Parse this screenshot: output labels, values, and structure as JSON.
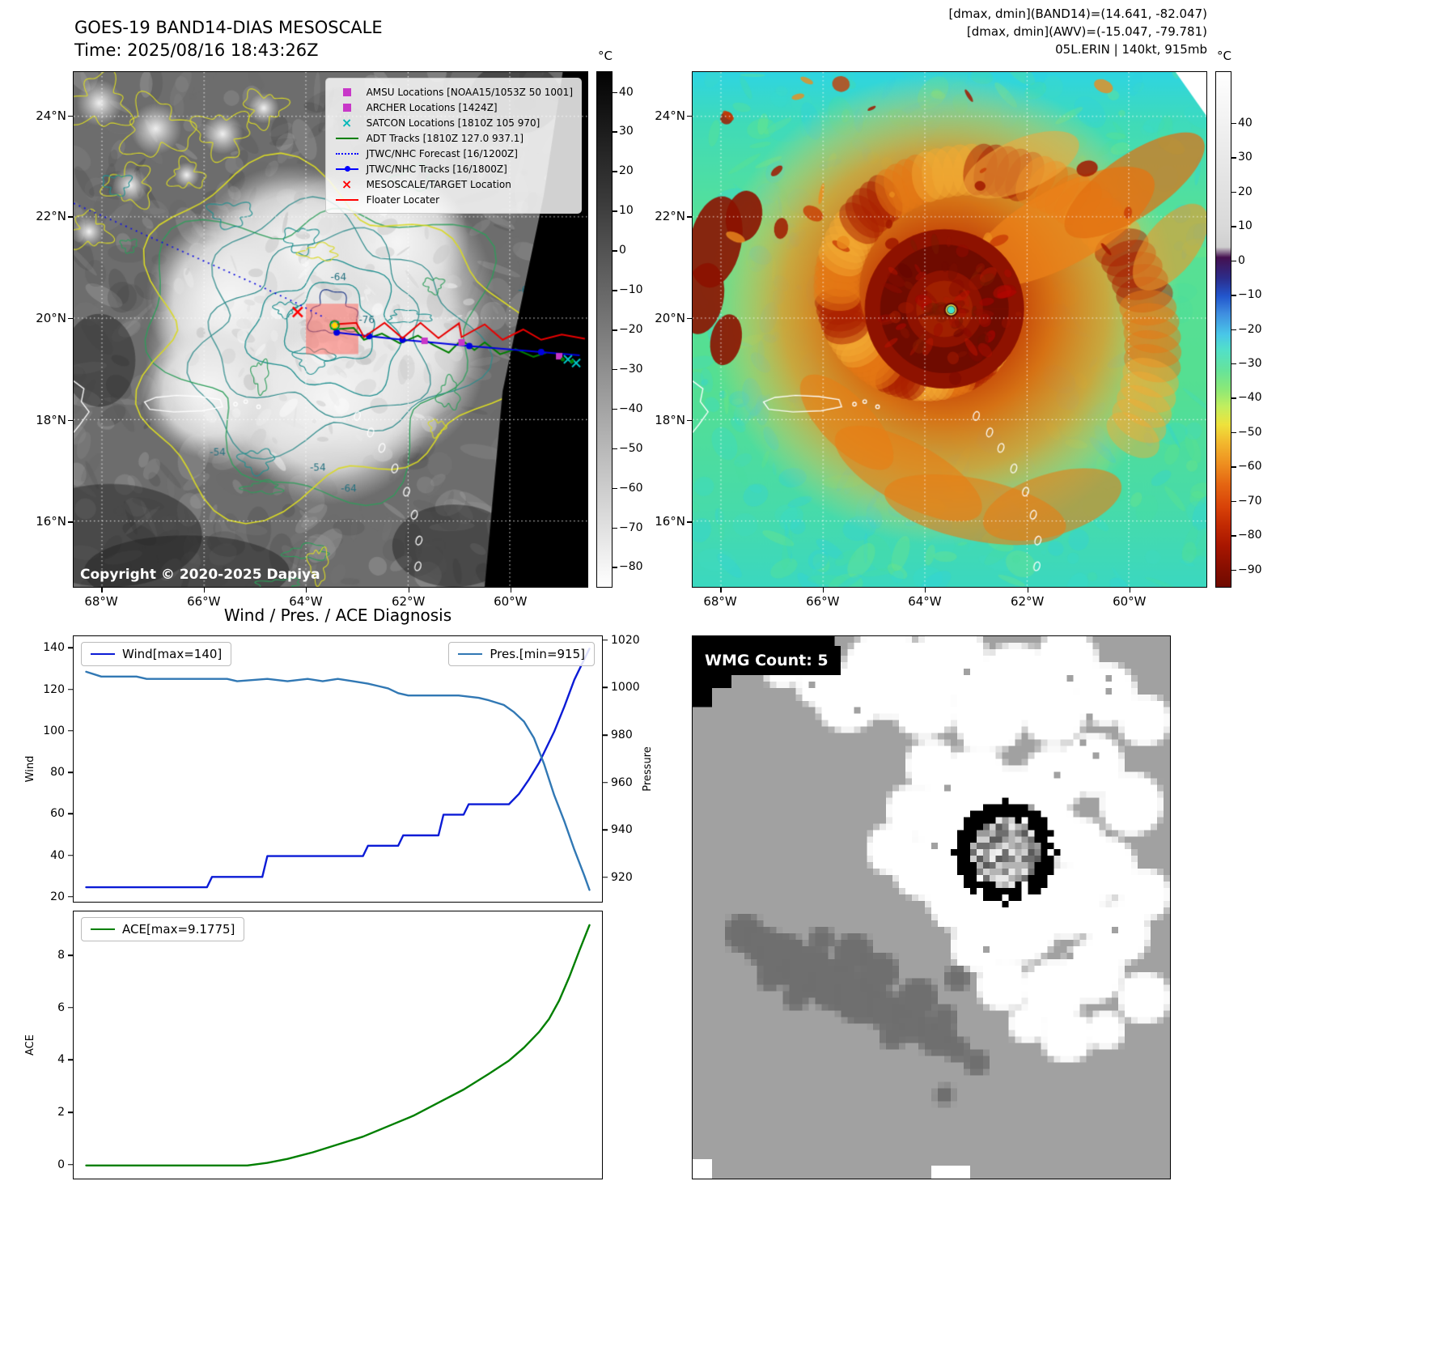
{
  "band14_panel": {
    "title_line1": "GOES-19 BAND14-DIAS MESOSCALE",
    "title_line2": "Time: 2025/08/16 18:43:26Z",
    "copyright": "Copyright © 2020-2025 Dapiya",
    "colorbar_unit": "°C",
    "colorbar_ticks": [
      "40",
      "30",
      "20",
      "10",
      "0",
      "−10",
      "−20",
      "−30",
      "−40",
      "−50",
      "−60",
      "−70",
      "−80"
    ],
    "lat_ticks": [
      "24°N",
      "22°N",
      "20°N",
      "18°N",
      "16°N"
    ],
    "lon_ticks": [
      "68°W",
      "66°W",
      "64°W",
      "62°W",
      "60°W"
    ],
    "legend_items": [
      {
        "label": "AMSU Locations [NOAA15/1053Z 50 1001]",
        "marker": "square",
        "color": "#c837c8"
      },
      {
        "label": "ARCHER Locations [1424Z]",
        "marker": "square",
        "color": "#c837c8"
      },
      {
        "label": "SATCON Locations [1810Z 105 970]",
        "marker": "x",
        "color": "#00b8b8"
      },
      {
        "label": "ADT Tracks [1810Z 127.0 937.1]",
        "marker": "line",
        "color": "#007f00"
      },
      {
        "label": "JTWC/NHC Forecast [16/1200Z]",
        "marker": "dotted",
        "color": "#0000ff"
      },
      {
        "label": "JTWC/NHC Tracks [16/1800Z]",
        "marker": "line-dot",
        "color": "#0000ff"
      },
      {
        "label": "MESOSCALE/TARGET Location",
        "marker": "x",
        "color": "#ff0000"
      },
      {
        "label": "Floater Locater",
        "marker": "line",
        "color": "#ff0000"
      }
    ],
    "contour_labels": [
      "-64",
      "-76",
      "-64",
      "-54",
      "-54",
      "-64"
    ]
  },
  "awv_panel": {
    "header_line1": "[dmax, dmin](BAND14)=(14.641, -82.047)",
    "header_line2": "[dmax, dmin](AWV)=(-15.047, -79.781)",
    "header_line3": "05L.ERIN | 140kt, 915mb",
    "colorbar_unit": "°C",
    "colorbar_ticks": [
      "40",
      "30",
      "20",
      "10",
      "0",
      "−10",
      "−20",
      "−30",
      "−40",
      "−50",
      "−60",
      "−70",
      "−80",
      "−90"
    ],
    "lat_ticks": [
      "24°N",
      "22°N",
      "20°N",
      "18°N",
      "16°N"
    ],
    "lon_ticks": [
      "68°W",
      "66°W",
      "64°W",
      "62°W",
      "60°W"
    ]
  },
  "wmg_panel": {
    "label": "WMG Count: 5"
  },
  "chart_data": [
    {
      "type": "line",
      "title": "Wind / Pres. / ACE Diagnosis",
      "xlabel": "",
      "ylabel": "Wind",
      "ylabel_right": "Pressure",
      "ylim": [
        18,
        146
      ],
      "ylim_right": [
        910,
        1022
      ],
      "yticks": [
        20,
        40,
        60,
        80,
        100,
        120,
        140
      ],
      "yticks_right": [
        920,
        940,
        960,
        980,
        1000,
        1020
      ],
      "grid": false,
      "legend": [
        {
          "name": "Wind[max=140]",
          "color": "#0b1bd6",
          "position": "top-left"
        },
        {
          "name": "Pres.[min=915]",
          "color": "#3178b4",
          "position": "top-right"
        }
      ],
      "series": [
        {
          "name": "Wind",
          "axis": "left",
          "color": "#0b1bd6",
          "points": [
            [
              0,
              25
            ],
            [
              24,
              25
            ],
            [
              25,
              30
            ],
            [
              35,
              30
            ],
            [
              36,
              40
            ],
            [
              55,
              40
            ],
            [
              56,
              45
            ],
            [
              62,
              45
            ],
            [
              63,
              50
            ],
            [
              70,
              50
            ],
            [
              71,
              60
            ],
            [
              75,
              60
            ],
            [
              76,
              65
            ],
            [
              84,
              65
            ],
            [
              86,
              70
            ],
            [
              88,
              77
            ],
            [
              90,
              85
            ],
            [
              91,
              90
            ],
            [
              93,
              100
            ],
            [
              95,
              112
            ],
            [
              97,
              125
            ],
            [
              99,
              135
            ],
            [
              100,
              140
            ]
          ]
        },
        {
          "name": "Pressure",
          "axis": "right",
          "color": "#3178b4",
          "points": [
            [
              0,
              1007
            ],
            [
              3,
              1005
            ],
            [
              10,
              1005
            ],
            [
              12,
              1004
            ],
            [
              28,
              1004
            ],
            [
              30,
              1003
            ],
            [
              36,
              1004
            ],
            [
              40,
              1003
            ],
            [
              44,
              1004
            ],
            [
              47,
              1003
            ],
            [
              50,
              1004
            ],
            [
              53,
              1003
            ],
            [
              56,
              1002
            ],
            [
              58,
              1001
            ],
            [
              60,
              1000
            ],
            [
              62,
              998
            ],
            [
              64,
              997
            ],
            [
              74,
              997
            ],
            [
              78,
              996
            ],
            [
              80,
              995
            ],
            [
              83,
              993
            ],
            [
              85,
              990
            ],
            [
              87,
              986
            ],
            [
              89,
              979
            ],
            [
              91,
              968
            ],
            [
              93,
              955
            ],
            [
              95,
              944
            ],
            [
              97,
              932
            ],
            [
              99,
              921
            ],
            [
              100,
              915
            ]
          ]
        }
      ]
    },
    {
      "type": "line",
      "title": "",
      "xlabel": "",
      "ylabel": "ACE",
      "ylim": [
        -0.5,
        9.7
      ],
      "yticks": [
        0,
        2,
        4,
        6,
        8
      ],
      "grid": false,
      "legend": [
        {
          "name": "ACE[max=9.1775]",
          "color": "#007f00",
          "position": "top-left"
        }
      ],
      "series": [
        {
          "name": "ACE",
          "axis": "left",
          "color": "#007f00",
          "points": [
            [
              0,
              0
            ],
            [
              32,
              0
            ],
            [
              36,
              0.1
            ],
            [
              40,
              0.25
            ],
            [
              45,
              0.5
            ],
            [
              50,
              0.8
            ],
            [
              55,
              1.1
            ],
            [
              60,
              1.5
            ],
            [
              65,
              1.9
            ],
            [
              70,
              2.4
            ],
            [
              75,
              2.9
            ],
            [
              80,
              3.5
            ],
            [
              84,
              4.0
            ],
            [
              87,
              4.5
            ],
            [
              90,
              5.1
            ],
            [
              92,
              5.6
            ],
            [
              94,
              6.3
            ],
            [
              96,
              7.2
            ],
            [
              98,
              8.2
            ],
            [
              100,
              9.1775
            ]
          ]
        }
      ]
    }
  ]
}
